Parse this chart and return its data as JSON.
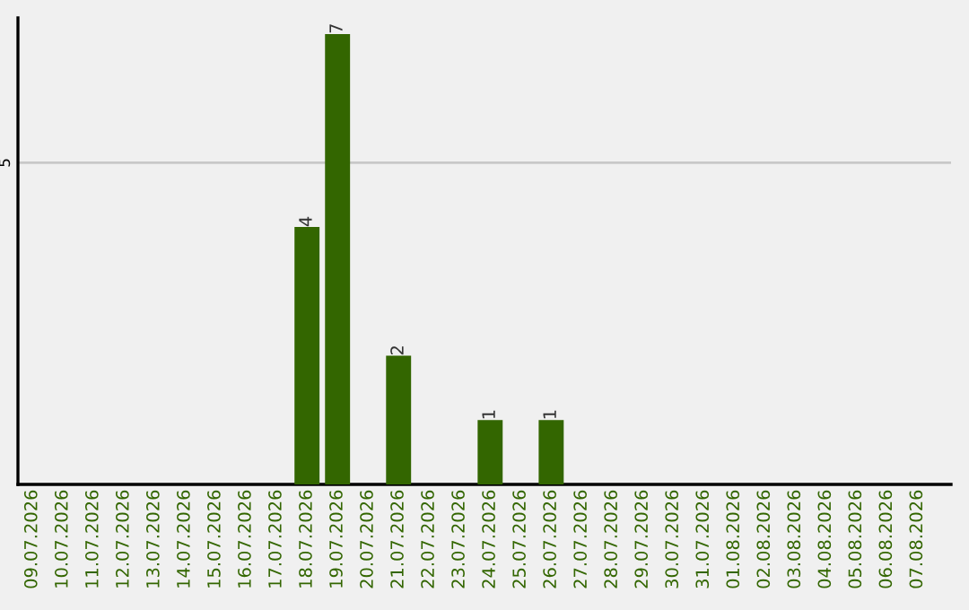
{
  "chart_data": {
    "type": "bar",
    "categories": [
      "09.07.2026",
      "10.07.2026",
      "11.07.2026",
      "12.07.2026",
      "13.07.2026",
      "14.07.2026",
      "15.07.2026",
      "16.07.2026",
      "17.07.2026",
      "18.07.2026",
      "19.07.2026",
      "20.07.2026",
      "21.07.2026",
      "22.07.2026",
      "23.07.2026",
      "24.07.2026",
      "25.07.2026",
      "26.07.2026",
      "27.07.2026",
      "28.07.2026",
      "29.07.2026",
      "30.07.2026",
      "31.07.2026",
      "01.08.2026",
      "02.08.2026",
      "03.08.2026",
      "04.08.2026",
      "05.08.2026",
      "06.08.2026",
      "07.08.2026"
    ],
    "values": [
      0,
      0,
      0,
      0,
      0,
      0,
      0,
      0,
      0,
      4,
      7,
      0,
      2,
      0,
      0,
      1,
      0,
      1,
      0,
      0,
      0,
      0,
      0,
      0,
      0,
      0,
      0,
      0,
      0,
      0
    ],
    "value_labels": [
      null,
      null,
      null,
      null,
      null,
      null,
      null,
      null,
      null,
      "4",
      "7",
      null,
      "2",
      null,
      null,
      "1",
      null,
      "1",
      null,
      null,
      null,
      null,
      null,
      null,
      null,
      null,
      null,
      null,
      null,
      null
    ],
    "color": "#336600",
    "ylim": [
      0,
      7.25
    ],
    "yticks": [
      5
    ],
    "grid": "y",
    "legend": false
  }
}
